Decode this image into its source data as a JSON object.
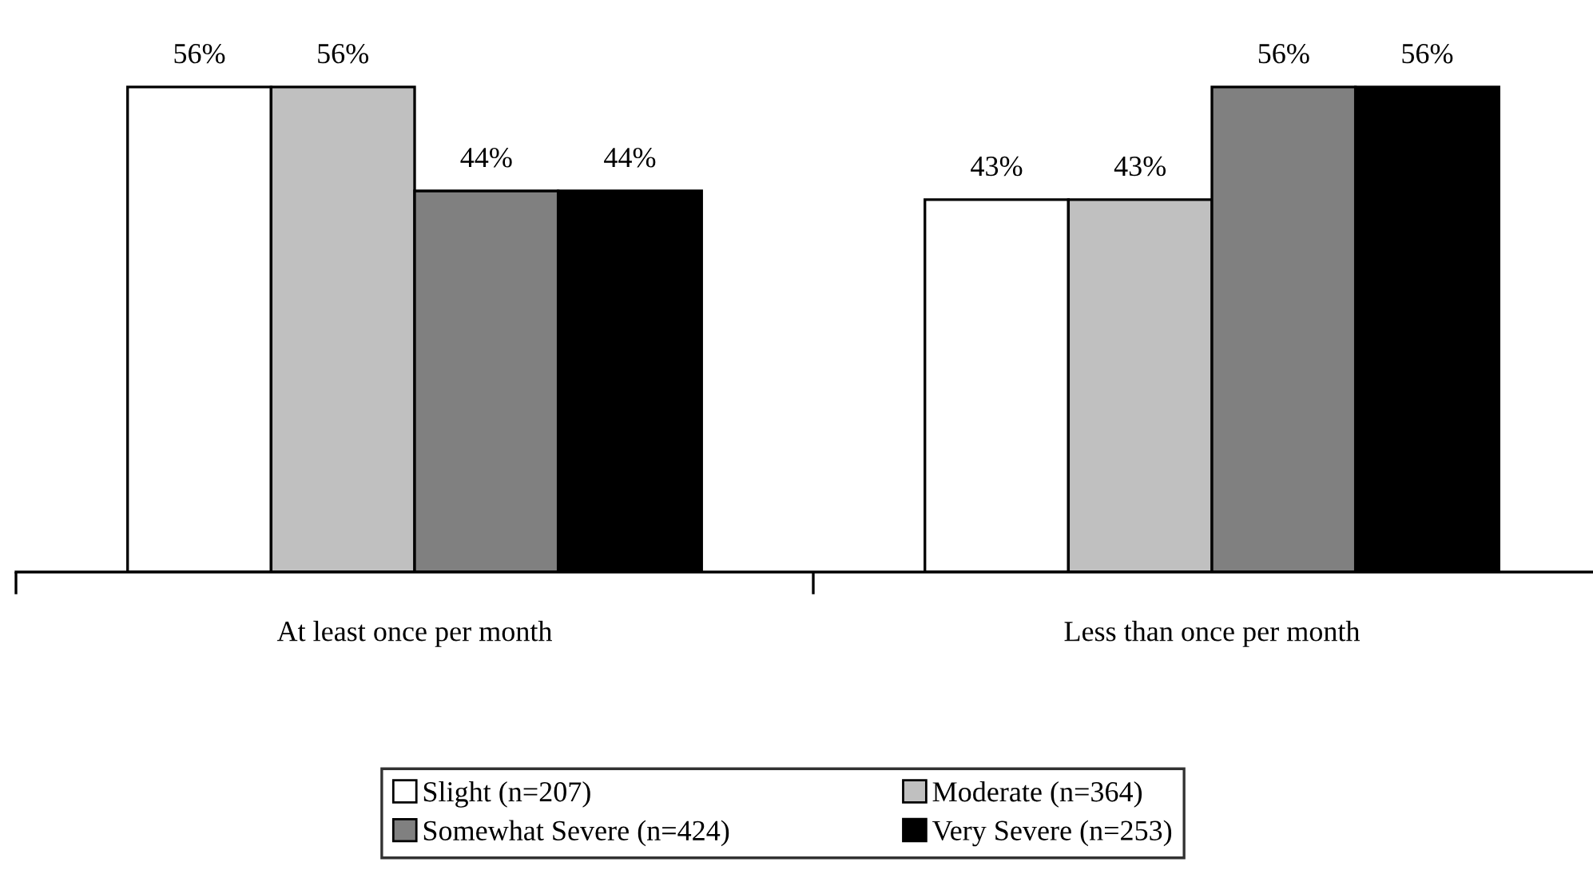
{
  "chart_data": {
    "type": "bar",
    "categories": [
      "At least once per month",
      "Less than once per month"
    ],
    "series": [
      {
        "name": "Slight (n=207)",
        "color": "#ffffff",
        "values": [
          56,
          43
        ],
        "value_labels": [
          "56%",
          "43%"
        ]
      },
      {
        "name": "Moderate (n=364)",
        "color": "#c0c0c0",
        "values": [
          56,
          43
        ],
        "value_labels": [
          "56%",
          "43%"
        ]
      },
      {
        "name": "Somewhat Severe (n=424)",
        "color": "#808080",
        "values": [
          44,
          56
        ],
        "value_labels": [
          "44%",
          "56%"
        ]
      },
      {
        "name": "Very Severe (n=253)",
        "color": "#000000",
        "values": [
          44,
          56
        ],
        "value_labels": [
          "44%",
          "56%"
        ]
      }
    ],
    "legend": "bottom",
    "grid": false
  }
}
